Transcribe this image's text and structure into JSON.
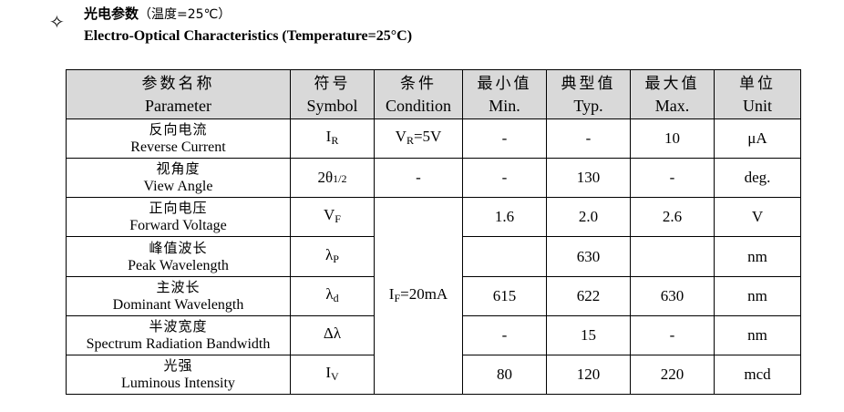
{
  "header": {
    "cn_title": "光电参数",
    "cn_sub": "（温度=25℃）",
    "en_title": "Electro-Optical Characteristics (Temperature=25°C)"
  },
  "columns": [
    {
      "cn": "参数名称",
      "en": "Parameter"
    },
    {
      "cn": "符号",
      "en": "Symbol"
    },
    {
      "cn": "条件",
      "en": "Condition"
    },
    {
      "cn": "最小值",
      "en": "Min."
    },
    {
      "cn": "典型值",
      "en": "Typ."
    },
    {
      "cn": "最大值",
      "en": "Max."
    },
    {
      "cn": "单位",
      "en": "Unit"
    }
  ],
  "rows": [
    {
      "cn": "反向电流",
      "en": "Reverse Current",
      "sym": "I",
      "sub": "R",
      "cond": "V",
      "cond_sub": "R",
      "cond_val": "=5V",
      "min": "-",
      "typ": "-",
      "max": "10",
      "unit": "μA"
    },
    {
      "cn": "视角度",
      "en": "View Angle",
      "sym": "2θ",
      "sub": "1/2",
      "cond": "-",
      "min": "-",
      "typ": "130",
      "max": "-",
      "unit": "deg."
    },
    {
      "cn": "正向电压",
      "en": "Forward Voltage",
      "sym": "V",
      "sub": "F",
      "min": "1.6",
      "typ": "2.0",
      "max": "2.6",
      "unit": "V"
    },
    {
      "cn": "峰值波长",
      "en": "Peak Wavelength",
      "sym": "λ",
      "sub": "P",
      "min": "",
      "typ": "630",
      "max": "",
      "unit": "nm"
    },
    {
      "cn": "主波长",
      "en": "Dominant Wavelength",
      "sym": "λ",
      "sub": "d",
      "min": "615",
      "typ": "622",
      "max": "630",
      "unit": "nm"
    },
    {
      "cn": "半波宽度",
      "en": "Spectrum Radiation Bandwidth",
      "sym": "Δλ",
      "sub": "",
      "min": "-",
      "typ": "15",
      "max": "-",
      "unit": "nm"
    },
    {
      "cn": "光强",
      "en": "Luminous Intensity",
      "sym": "I",
      "sub": "V",
      "min": "80",
      "typ": "120",
      "max": "220",
      "unit": "mcd"
    }
  ],
  "shared_condition": {
    "sym": "I",
    "sub": "F",
    "val": "=20mA"
  }
}
